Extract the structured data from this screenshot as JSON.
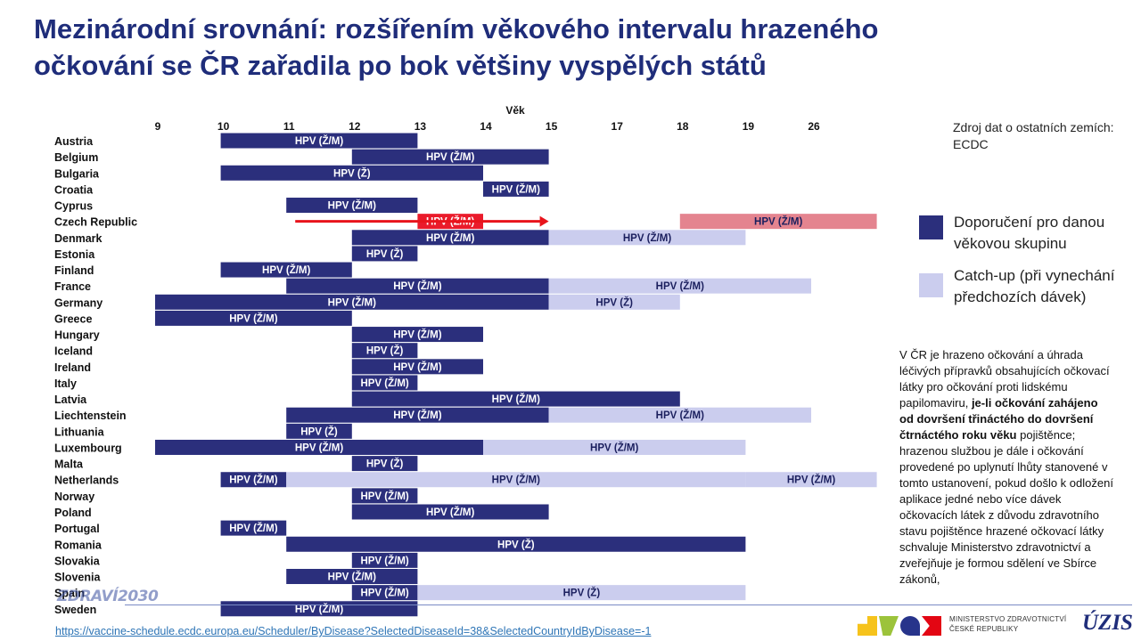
{
  "title": {
    "line1": "Mezinárodní srovnání: rozšířením věkového intervalu hrazeného",
    "line2": "očkování se ČR zařadila po bok většiny vyspělých států"
  },
  "colors": {
    "title": "#1f2d7a",
    "recommended": "#2b2f7c",
    "catchup": "#cbcdee",
    "czech_new": "#e4848f",
    "czech_old": "#ea1b2b",
    "arrow": "#e8141c"
  },
  "source_note": "Zdroj dat o ostatních zemích: ECDC",
  "legend": {
    "recommended": "Doporučení pro danou věkovou skupinu",
    "catchup": "Catch-up (při vynechání předchozích dávek)"
  },
  "description": {
    "part1": "V ČR je hrazeno očkování a úhrada léčivých přípravků obsahujících očkovací látky pro očkování proti lidskému papilomaviru, ",
    "bold": "je-li očkování zahájeno od dovršení třináctého do dovršení čtrnáctého roku věku",
    "part2": " pojištěnce; hrazenou službou je dále i očkování provedené po uplynutí lhůty stanovené v tomto ustanovení, pokud došlo k odložení aplikace jedné nebo více dávek očkovacích látek z důvodu zdravotního stavu pojištěnce hrazené očkovací látky schvaluje Ministerstvo zdravotnictví a zveřejňuje je formou sdělení ve Sbírce zákonů,"
  },
  "url": "https://vaccine-schedule.ecdc.europa.eu/Scheduler/ByDisease?SelectedDiseaseId=38&SelectedCountryIdByDisease=-1",
  "brand_logo": "ZDRAVÍ2030",
  "ministry": {
    "line1": "MINISTERSTVO ZDRAVOTNICTVÍ",
    "line2": "ČESKÉ REPUBLIKY"
  },
  "uzis_logo": "ÚZIS",
  "chart_data": {
    "type": "gantt",
    "xlabel": "Věk",
    "age_ticks": [
      "9",
      "10",
      "11",
      "12",
      "13",
      "14",
      "15",
      "17",
      "18",
      "19",
      "26"
    ],
    "countries": [
      {
        "name": "Austria",
        "bars": [
          {
            "start": "10",
            "end": "13",
            "kind": "recommended",
            "label": "HPV (Ž/M)"
          }
        ]
      },
      {
        "name": "Belgium",
        "bars": [
          {
            "start": "12",
            "end": "15",
            "kind": "recommended",
            "label": "HPV (Ž/M)"
          }
        ]
      },
      {
        "name": "Bulgaria",
        "bars": [
          {
            "start": "10",
            "end": "14",
            "kind": "recommended",
            "label": "HPV (Ž)"
          }
        ]
      },
      {
        "name": "Croatia",
        "bars": [
          {
            "start": "14",
            "end": "15",
            "kind": "recommended",
            "label": "HPV (Ž/M)"
          }
        ]
      },
      {
        "name": "Cyprus",
        "bars": [
          {
            "start": "11",
            "end": "13",
            "kind": "recommended",
            "label": "HPV (Ž/M)"
          }
        ]
      },
      {
        "name": "Czech Republic",
        "bars": [
          {
            "start": "13",
            "end": "14",
            "kind": "czech_old",
            "label": "HPV (Ž/M)"
          },
          {
            "start": "18",
            "end": "end",
            "kind": "czech_new",
            "label": "HPV (Ž/M)"
          }
        ]
      },
      {
        "name": "Denmark",
        "bars": [
          {
            "start": "12",
            "end": "15",
            "kind": "recommended",
            "label": "HPV (Ž/M)"
          },
          {
            "start": "15",
            "end": "19",
            "kind": "catchup",
            "label": "HPV (Ž/M)"
          }
        ]
      },
      {
        "name": "Estonia",
        "bars": [
          {
            "start": "12",
            "end": "13",
            "kind": "recommended",
            "label": "HPV (Ž)"
          }
        ]
      },
      {
        "name": "Finland",
        "bars": [
          {
            "start": "10",
            "end": "12",
            "kind": "recommended",
            "label": "HPV (Ž/M)"
          }
        ]
      },
      {
        "name": "France",
        "bars": [
          {
            "start": "11",
            "end": "15",
            "kind": "recommended",
            "label": "HPV (Ž/M)"
          },
          {
            "start": "15",
            "end": "26",
            "kind": "catchup",
            "label": "HPV (Ž/M)"
          }
        ]
      },
      {
        "name": "Germany",
        "bars": [
          {
            "start": "9",
            "end": "15",
            "kind": "recommended",
            "label": "HPV (Ž/M)"
          },
          {
            "start": "15",
            "end": "18",
            "kind": "catchup",
            "label": "HPV (Ž)"
          }
        ]
      },
      {
        "name": "Greece",
        "bars": [
          {
            "start": "9",
            "end": "12",
            "kind": "recommended",
            "label": "HPV (Ž/M)"
          }
        ]
      },
      {
        "name": "Hungary",
        "bars": [
          {
            "start": "12",
            "end": "14",
            "kind": "recommended",
            "label": "HPV (Ž/M)"
          }
        ]
      },
      {
        "name": "Iceland",
        "bars": [
          {
            "start": "12",
            "end": "13",
            "kind": "recommended",
            "label": "HPV (Ž)"
          }
        ]
      },
      {
        "name": "Ireland",
        "bars": [
          {
            "start": "12",
            "end": "14",
            "kind": "recommended",
            "label": "HPV (Ž/M)"
          }
        ]
      },
      {
        "name": "Italy",
        "bars": [
          {
            "start": "12",
            "end": "13",
            "kind": "recommended",
            "label": "HPV (Ž/M)"
          }
        ]
      },
      {
        "name": "Latvia",
        "bars": [
          {
            "start": "12",
            "end": "18",
            "kind": "recommended",
            "label": "HPV (Ž/M)"
          }
        ]
      },
      {
        "name": "Liechtenstein",
        "bars": [
          {
            "start": "11",
            "end": "15",
            "kind": "recommended",
            "label": "HPV (Ž/M)"
          },
          {
            "start": "15",
            "end": "26",
            "kind": "catchup",
            "label": "HPV (Ž/M)"
          }
        ]
      },
      {
        "name": "Lithuania",
        "bars": [
          {
            "start": "11",
            "end": "12",
            "kind": "recommended",
            "label": "HPV (Ž)"
          }
        ]
      },
      {
        "name": "Luxembourg",
        "bars": [
          {
            "start": "9",
            "end": "14",
            "kind": "recommended",
            "label": "HPV (Ž/M)"
          },
          {
            "start": "14",
            "end": "19",
            "kind": "catchup",
            "label": "HPV (Ž/M)"
          }
        ]
      },
      {
        "name": "Malta",
        "bars": [
          {
            "start": "12",
            "end": "13",
            "kind": "recommended",
            "label": "HPV (Ž)"
          }
        ]
      },
      {
        "name": "Netherlands",
        "bars": [
          {
            "start": "10",
            "end": "11",
            "kind": "recommended",
            "label": "HPV (Ž/M)"
          },
          {
            "start": "11",
            "end": "19",
            "kind": "catchup",
            "label": "HPV (Ž/M)"
          },
          {
            "start": "19",
            "end": "end",
            "kind": "catchup",
            "label": "HPV (Ž/M)"
          }
        ]
      },
      {
        "name": "Norway",
        "bars": [
          {
            "start": "12",
            "end": "13",
            "kind": "recommended",
            "label": "HPV (Ž/M)"
          }
        ]
      },
      {
        "name": "Poland",
        "bars": [
          {
            "start": "12",
            "end": "15",
            "kind": "recommended",
            "label": "HPV (Ž/M)"
          }
        ]
      },
      {
        "name": "Portugal",
        "bars": [
          {
            "start": "10",
            "end": "11",
            "kind": "recommended",
            "label": "HPV (Ž/M)"
          }
        ]
      },
      {
        "name": "Romania",
        "bars": [
          {
            "start": "11",
            "end": "19",
            "kind": "recommended",
            "label": "HPV (Ž)"
          }
        ]
      },
      {
        "name": "Slovakia",
        "bars": [
          {
            "start": "12",
            "end": "13",
            "kind": "recommended",
            "label": "HPV (Ž/M)"
          }
        ]
      },
      {
        "name": "Slovenia",
        "bars": [
          {
            "start": "11",
            "end": "13",
            "kind": "recommended",
            "label": "HPV (Ž/M)"
          }
        ]
      },
      {
        "name": "Spain",
        "bars": [
          {
            "start": "12",
            "end": "13",
            "kind": "recommended",
            "label": "HPV (Ž/M)"
          },
          {
            "start": "13",
            "end": "19",
            "kind": "catchup",
            "label": "HPV (Ž)"
          }
        ]
      },
      {
        "name": "Sweden",
        "bars": [
          {
            "start": "10",
            "end": "13",
            "kind": "recommended",
            "label": "HPV (Ž/M)"
          }
        ]
      }
    ],
    "annotations": [
      {
        "type": "arrow",
        "row": "Czech Republic",
        "from": "11",
        "to": "15"
      }
    ]
  }
}
